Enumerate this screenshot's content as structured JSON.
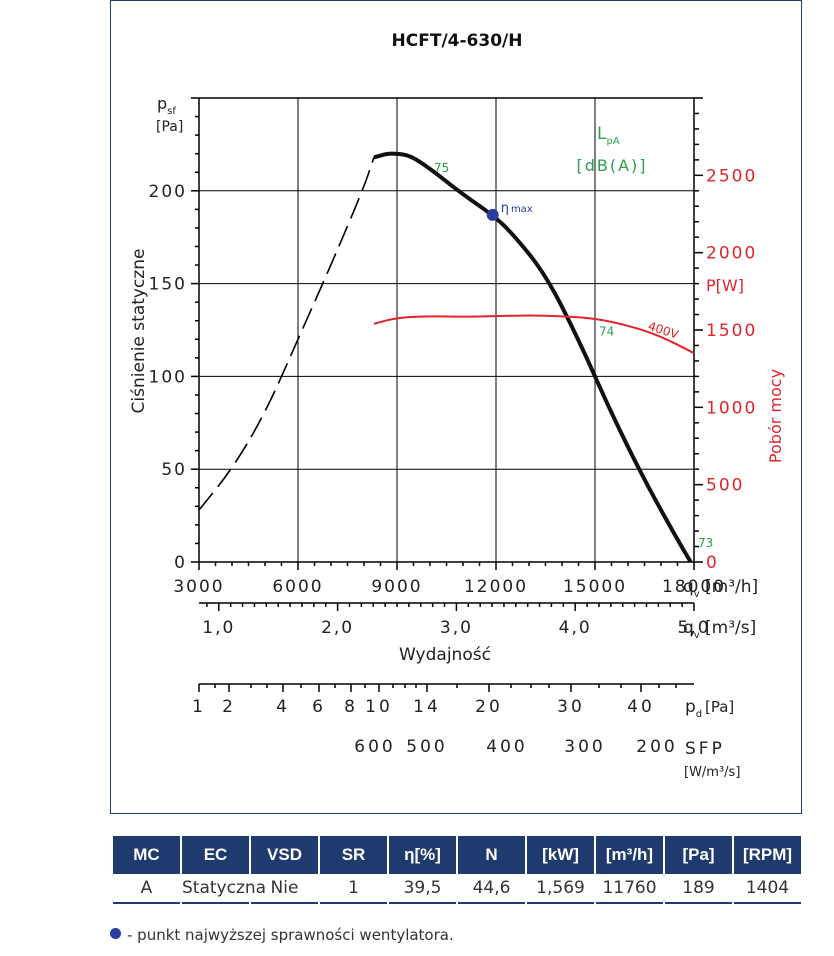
{
  "chart_data": {
    "type": "line",
    "title": "HCFT/4-630/H",
    "ylabel": "Ciśnienie statyczne",
    "yunit_symbol": "p",
    "yunit_sub": "sf",
    "yunit": "[Pa]",
    "y_ticks": [
      0,
      50,
      100,
      150,
      200
    ],
    "ylim": [
      0,
      250
    ],
    "xlim": [
      3000,
      18000
    ],
    "x_ticks": [
      3000,
      6000,
      9000,
      12000,
      15000,
      18000
    ],
    "x_label_text": "q",
    "x_label_sub": "v",
    "x_unit": "[m³/h]",
    "x2_ticks": [
      "1,0",
      "2,0",
      "3,0",
      "4,0",
      "5,0"
    ],
    "x2_label_text": "q",
    "x2_label_sub": "v",
    "x2_unit": "[m³/s]",
    "xlabel": "Wydajność",
    "pd_ticks": [
      "1",
      "2",
      "4",
      "6",
      "8",
      "10",
      "14",
      "20",
      "30",
      "40"
    ],
    "pd_label_text": "p",
    "pd_label_sub": "d",
    "pd_unit": "[Pa]",
    "sfp_ticks": [
      "600",
      "500",
      "400",
      "300",
      "200"
    ],
    "sfp_label": "SFP",
    "sfp_unit": "[W/m³/s]",
    "y2_label": "Pobór mocy",
    "y2_unit": "P[W]",
    "y2_ticks": [
      0,
      500,
      1000,
      1500,
      2000,
      2500
    ],
    "y2lim": [
      0,
      3000
    ],
    "noise_label_text": "L",
    "noise_label_sub": "pA",
    "noise_unit": "[dB(A)]",
    "eta_symbol": "η",
    "eta_sub": "max",
    "grid": true,
    "series": [
      {
        "style": "dashed",
        "color": "#000000",
        "x": [
          3000,
          4000,
          5000,
          6000,
          7000,
          8000,
          8300
        ],
        "y": [
          28,
          50,
          80,
          120,
          160,
          202,
          218
        ]
      },
      {
        "style": "solid",
        "color": "#111111",
        "x": [
          8300,
          8700,
          9000,
          9400,
          10000,
          11000,
          11900,
          12500,
          13500,
          14500,
          15500,
          16500,
          17500,
          17900
        ],
        "y": [
          218,
          220,
          220,
          219,
          212,
          198,
          187,
          177,
          155,
          120,
          80,
          44,
          12,
          0
        ]
      },
      {
        "name": "400V",
        "axis": "power",
        "color": "#e0242a",
        "x": [
          8300,
          9000,
          10000,
          11000,
          12000,
          13000,
          14000,
          15000,
          16000,
          17000,
          18000
        ],
        "y": [
          1540,
          1580,
          1590,
          1585,
          1590,
          1595,
          1590,
          1575,
          1530,
          1460,
          1350
        ]
      }
    ],
    "noise_labels": [
      {
        "text": "75",
        "x": 10000,
        "y": 208
      },
      {
        "text": "74",
        "x": 15000,
        "y": 120
      },
      {
        "text": "73",
        "x": 18000,
        "y": 6
      }
    ],
    "eta_max_point": {
      "x": 11900,
      "y": 187
    },
    "table": {
      "headers": [
        "MC",
        "EC",
        "VSD",
        "SR",
        "η[%]",
        "N",
        "[kW]",
        "[m³/h]",
        "[Pa]",
        "[RPM]"
      ],
      "rows": [
        [
          "A",
          "Statyczna",
          "Nie",
          "1",
          "39,5",
          "44,6",
          "1,569",
          "11760",
          "189",
          "1404"
        ]
      ]
    }
  },
  "note": "- punkt najwyższej sprawności wentylatora.",
  "colors": {
    "navy": "#1f3a6e",
    "red": "#e0242a",
    "green": "#2e9e4f",
    "dot": "#2b3a9e"
  }
}
